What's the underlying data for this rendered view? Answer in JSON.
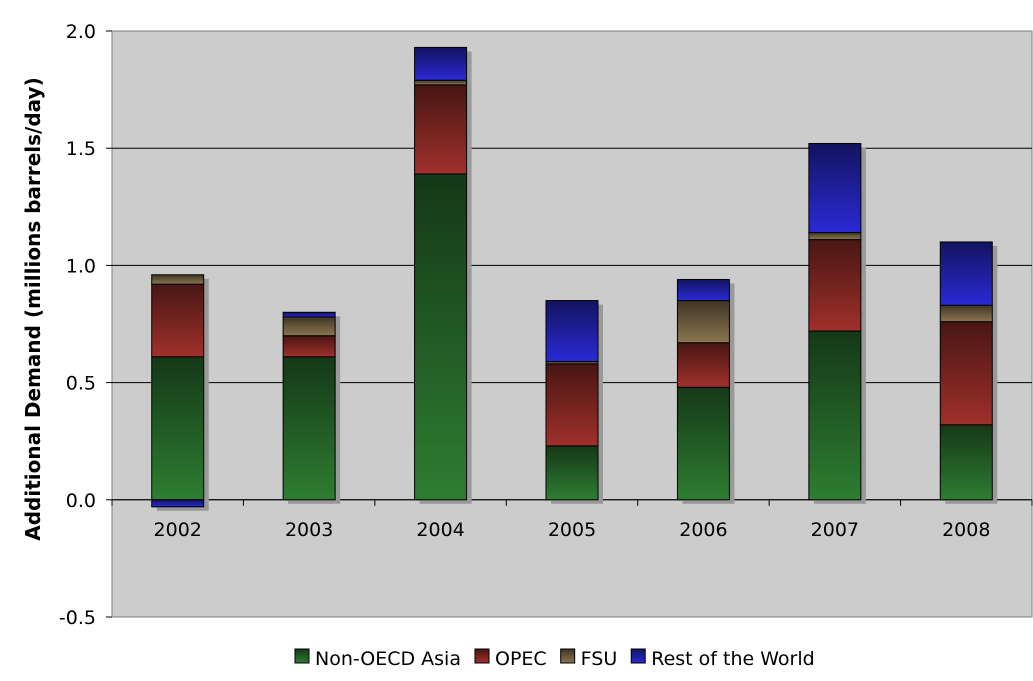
{
  "chart_data": {
    "type": "bar",
    "stacked": true,
    "categories": [
      "2002",
      "2003",
      "2004",
      "2005",
      "2006",
      "2007",
      "2008"
    ],
    "series": [
      {
        "name": "Non-OECD Asia",
        "values": [
          0.61,
          0.61,
          1.39,
          0.23,
          0.48,
          0.72,
          0.32
        ],
        "color": "#2e7d32"
      },
      {
        "name": "OPEC",
        "values": [
          0.31,
          0.09,
          0.38,
          0.35,
          0.19,
          0.39,
          0.44
        ],
        "color": "#a0302b"
      },
      {
        "name": "FSU",
        "values": [
          0.04,
          0.08,
          0.02,
          0.01,
          0.18,
          0.03,
          0.07
        ],
        "color": "#8b7550"
      },
      {
        "name": "Rest of the World",
        "values": [
          -0.03,
          0.02,
          0.14,
          0.26,
          0.09,
          0.38,
          0.27
        ],
        "color": "#2a2ad6"
      }
    ],
    "title": "",
    "xlabel": "",
    "ylabel": "Additional Demand (millions barrels/day)",
    "ylim": [
      -0.5,
      2.0
    ],
    "yticks": [
      "-0.5",
      "0.0",
      "0.5",
      "1.0",
      "1.5",
      "2.0"
    ],
    "grid": true,
    "legend_position": "bottom",
    "plot_background": "#cccccc"
  }
}
